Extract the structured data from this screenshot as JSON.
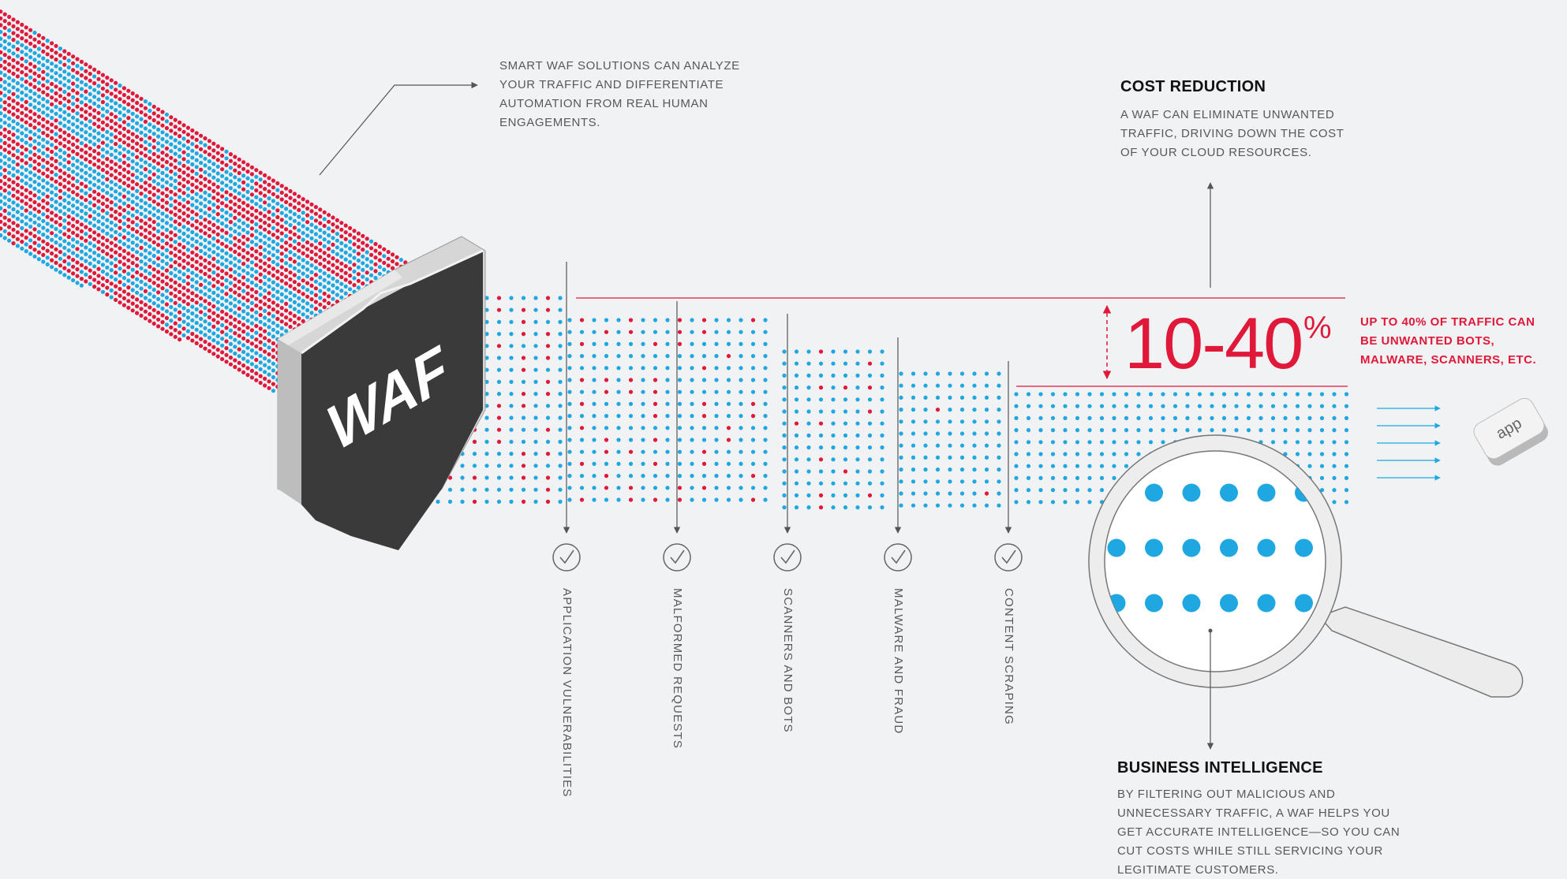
{
  "colors": {
    "red": "#e0183a",
    "blue": "#1ea7e1",
    "shield": "#3a3a3a",
    "line": "#555555"
  },
  "waf_label": "WAF",
  "smart_waf_note": "SMART WAF SOLUTIONS CAN ANALYZE YOUR TRAFFIC AND DIFFERENTIATE AUTOMATION FROM REAL HUMAN ENGAGEMENTS.",
  "cost_reduction": {
    "title": "COST REDUCTION",
    "body": "A WAF CAN ELIMINATE UNWANTED TRAFFIC, DRIVING DOWN THE COST OF YOUR CLOUD RESOURCES."
  },
  "stat": {
    "value": "10-40",
    "unit": "%",
    "note": "UP TO 40% OF TRAFFIC CAN BE UNWANTED BOTS, MALWARE, SCANNERS, ETC."
  },
  "filters": [
    {
      "label": "APPLICATION VULNERABILITIES",
      "icon": "check-circle-icon"
    },
    {
      "label": "MALFORMED REQUESTS",
      "icon": "check-circle-icon"
    },
    {
      "label": "SCANNERS AND BOTS",
      "icon": "check-circle-icon"
    },
    {
      "label": "MALWARE AND FRAUD",
      "icon": "check-circle-icon"
    },
    {
      "label": "CONTENT SCRAPING",
      "icon": "check-circle-icon"
    }
  ],
  "app_label": "app",
  "business_intelligence": {
    "title": "BUSINESS INTELLIGENCE",
    "body": "BY FILTERING OUT MALICIOUS AND UNNECESSARY TRAFFIC, A WAF HELPS YOU GET ACCURATE INTELLIGENCE—SO YOU CAN CUT COSTS WHILE STILL SERVICING YOUR LEGITIMATE CUSTOMERS."
  },
  "icons": [
    "waf-shield-icon",
    "magnifier-icon",
    "app-icon",
    "arrow-icon"
  ]
}
